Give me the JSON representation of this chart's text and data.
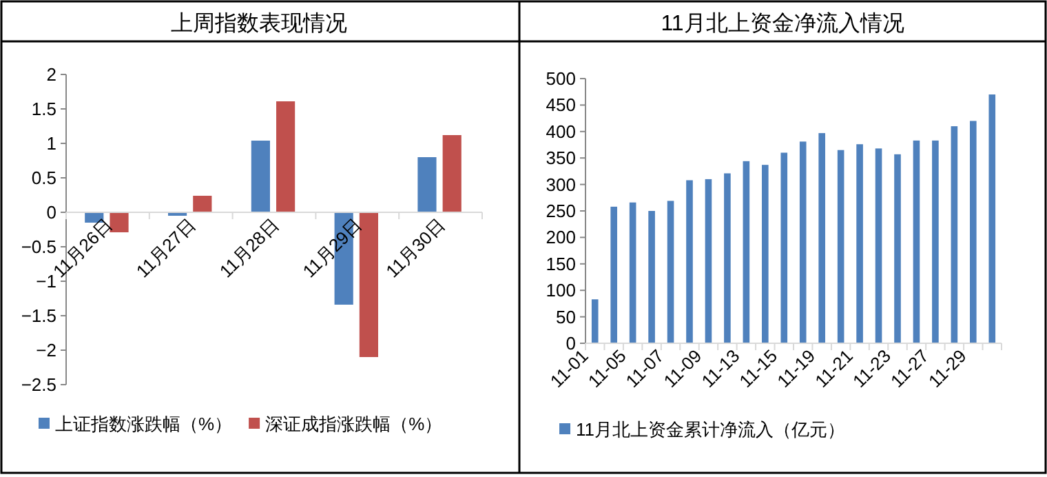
{
  "chart_data": [
    {
      "type": "bar",
      "title": "上周指数表现情况",
      "categories": [
        "11月26日",
        "11月27日",
        "11月28日",
        "11月29日",
        "11月30日"
      ],
      "series": [
        {
          "name": "上证指数涨跌幅（%）",
          "color": "#4f81bd",
          "values": [
            -0.15,
            -0.05,
            1.04,
            -1.34,
            0.8
          ]
        },
        {
          "name": "深证成指涨跌幅（%）",
          "color": "#c0504d",
          "values": [
            -0.29,
            0.24,
            1.61,
            -2.1,
            1.12
          ]
        }
      ],
      "ylim": [
        -2.5,
        2
      ],
      "yticks": [
        -2.5,
        -2,
        -1.5,
        -1,
        -0.5,
        0,
        0.5,
        1,
        1.5,
        2
      ],
      "legend": "bottom",
      "grid": false
    },
    {
      "type": "bar",
      "title": "11月北上资金净流入情况",
      "categories": [
        "11-01",
        null,
        "11-05",
        null,
        "11-07",
        null,
        "11-09",
        null,
        "11-13",
        null,
        "11-15",
        null,
        "11-19",
        null,
        "11-21",
        null,
        "11-23",
        null,
        "11-27",
        null,
        "11-29",
        null
      ],
      "series": [
        {
          "name": "11月北上资金累计净流入（亿元）",
          "color": "#4f81bd",
          "values": [
            83,
            258,
            266,
            250,
            269,
            308,
            310,
            321,
            344,
            337,
            360,
            381,
            397,
            365,
            376,
            368,
            357,
            383,
            383,
            410,
            420,
            470
          ]
        }
      ],
      "ylim": [
        0,
        500
      ],
      "yticks": [
        0,
        50,
        100,
        150,
        200,
        250,
        300,
        350,
        400,
        450,
        500
      ],
      "legend": "bottom",
      "grid": false
    }
  ]
}
